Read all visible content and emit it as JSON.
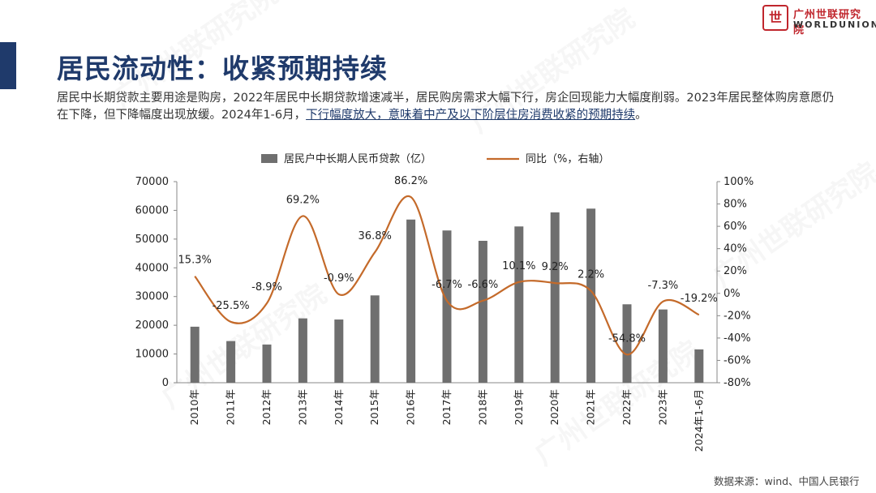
{
  "header": {
    "title": "居民流动性：收紧预期持续",
    "desc_part1": "居民中长期贷款主要用途是购房，2022年居民中长期贷款增速减半，居民购房需求大幅下行，房企回现能力大幅度削弱。2023年居民整体购房意愿仍在下降，但下降幅度出现放缓。2024年1-6月，",
    "desc_highlight": "下行幅度放大，意味着中产及以下阶层住房消费收紧的预期持续",
    "desc_part2": "。"
  },
  "logo": {
    "cn": "广州世联研究院",
    "en": "WORLDUNION",
    "seal": "世"
  },
  "watermark": "广州世联研究院",
  "source": "数据来源：wind、中国人民银行",
  "colors": {
    "bar": "#6f6f6f",
    "line": "#c46a2a",
    "title": "#1f3a6b"
  },
  "chart_data": {
    "type": "bar+line",
    "categories": [
      "2010年",
      "2011年",
      "2012年",
      "2013年",
      "2014年",
      "2015年",
      "2016年",
      "2017年",
      "2018年",
      "2019年",
      "2020年",
      "2021年",
      "2022年",
      "2023年",
      "2024年1-6月"
    ],
    "series": [
      {
        "name": "居民户中长期人民币贷款（亿）",
        "type": "bar",
        "axis": "left",
        "values": [
          19500,
          14500,
          13300,
          22400,
          22000,
          30400,
          56800,
          53000,
          49400,
          54400,
          59300,
          60600,
          27300,
          25500,
          11600
        ]
      },
      {
        "name": "同比（%，右轴）",
        "type": "line",
        "axis": "right",
        "values": [
          15.3,
          -25.5,
          -8.9,
          69.2,
          -0.9,
          36.8,
          86.2,
          -6.7,
          -6.6,
          10.1,
          9.2,
          2.2,
          -54.8,
          -7.3,
          -19.2
        ],
        "labels": [
          "15.3%",
          "-25.5%",
          "-8.9%",
          "69.2%",
          "-0.9%",
          "36.8%",
          "86.2%",
          "-6.7%",
          "-6.6%",
          "10.1%",
          "9.2%",
          "2.2%",
          "-54.8%",
          "-7.3%",
          "-19.2%"
        ]
      }
    ],
    "y_left": {
      "min": 0,
      "max": 70000,
      "ticks": [
        "0",
        "10000",
        "20000",
        "30000",
        "40000",
        "50000",
        "60000",
        "70000"
      ]
    },
    "y_right": {
      "min": -80,
      "max": 100,
      "ticks": [
        "-80%",
        "-60%",
        "-40%",
        "-20%",
        "0%",
        "20%",
        "40%",
        "60%",
        "80%",
        "100%"
      ]
    },
    "legend": "top",
    "grid": false
  }
}
